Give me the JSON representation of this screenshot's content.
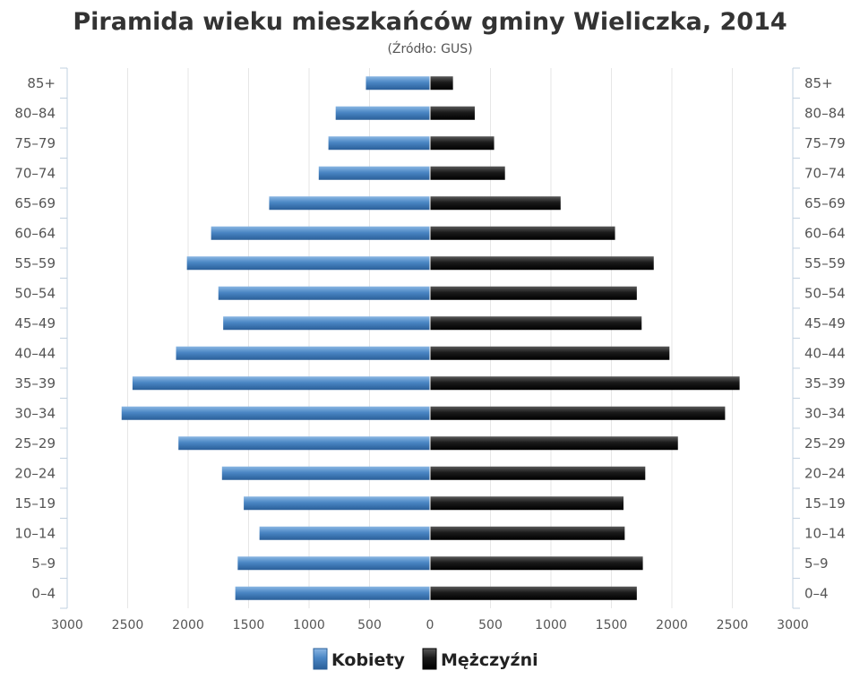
{
  "chart_data": {
    "type": "bar",
    "orientation": "horizontal",
    "title": "Piramida wieku mieszkańców gminy Wieliczka, 2014",
    "subtitle": "(Źródło: GUS)",
    "categories": [
      "0–4",
      "5–9",
      "10–14",
      "15–19",
      "20–24",
      "25–29",
      "30–34",
      "35–39",
      "40–44",
      "45–49",
      "50–54",
      "55–59",
      "60–64",
      "65–69",
      "70–74",
      "75–79",
      "80–84",
      "85+"
    ],
    "series": [
      {
        "name": "Kobiety",
        "color": "#4a86c4",
        "values": [
          1610,
          1590,
          1410,
          1540,
          1720,
          2080,
          2550,
          2460,
          2100,
          1710,
          1750,
          2010,
          1810,
          1330,
          920,
          840,
          780,
          530
        ]
      },
      {
        "name": "Mężczyźni",
        "color": "#1a1a1a",
        "values": [
          1710,
          1760,
          1610,
          1600,
          1780,
          2050,
          2440,
          2560,
          1980,
          1750,
          1710,
          1850,
          1530,
          1080,
          620,
          530,
          370,
          190
        ]
      }
    ],
    "xticks": [
      "3000",
      "2500",
      "2000",
      "1500",
      "1000",
      "500",
      "0",
      "500",
      "1000",
      "1500",
      "2000",
      "2500",
      "3000"
    ],
    "xlim": [
      -3000,
      3000
    ],
    "grid": true,
    "legend_position": "bottom-center"
  }
}
